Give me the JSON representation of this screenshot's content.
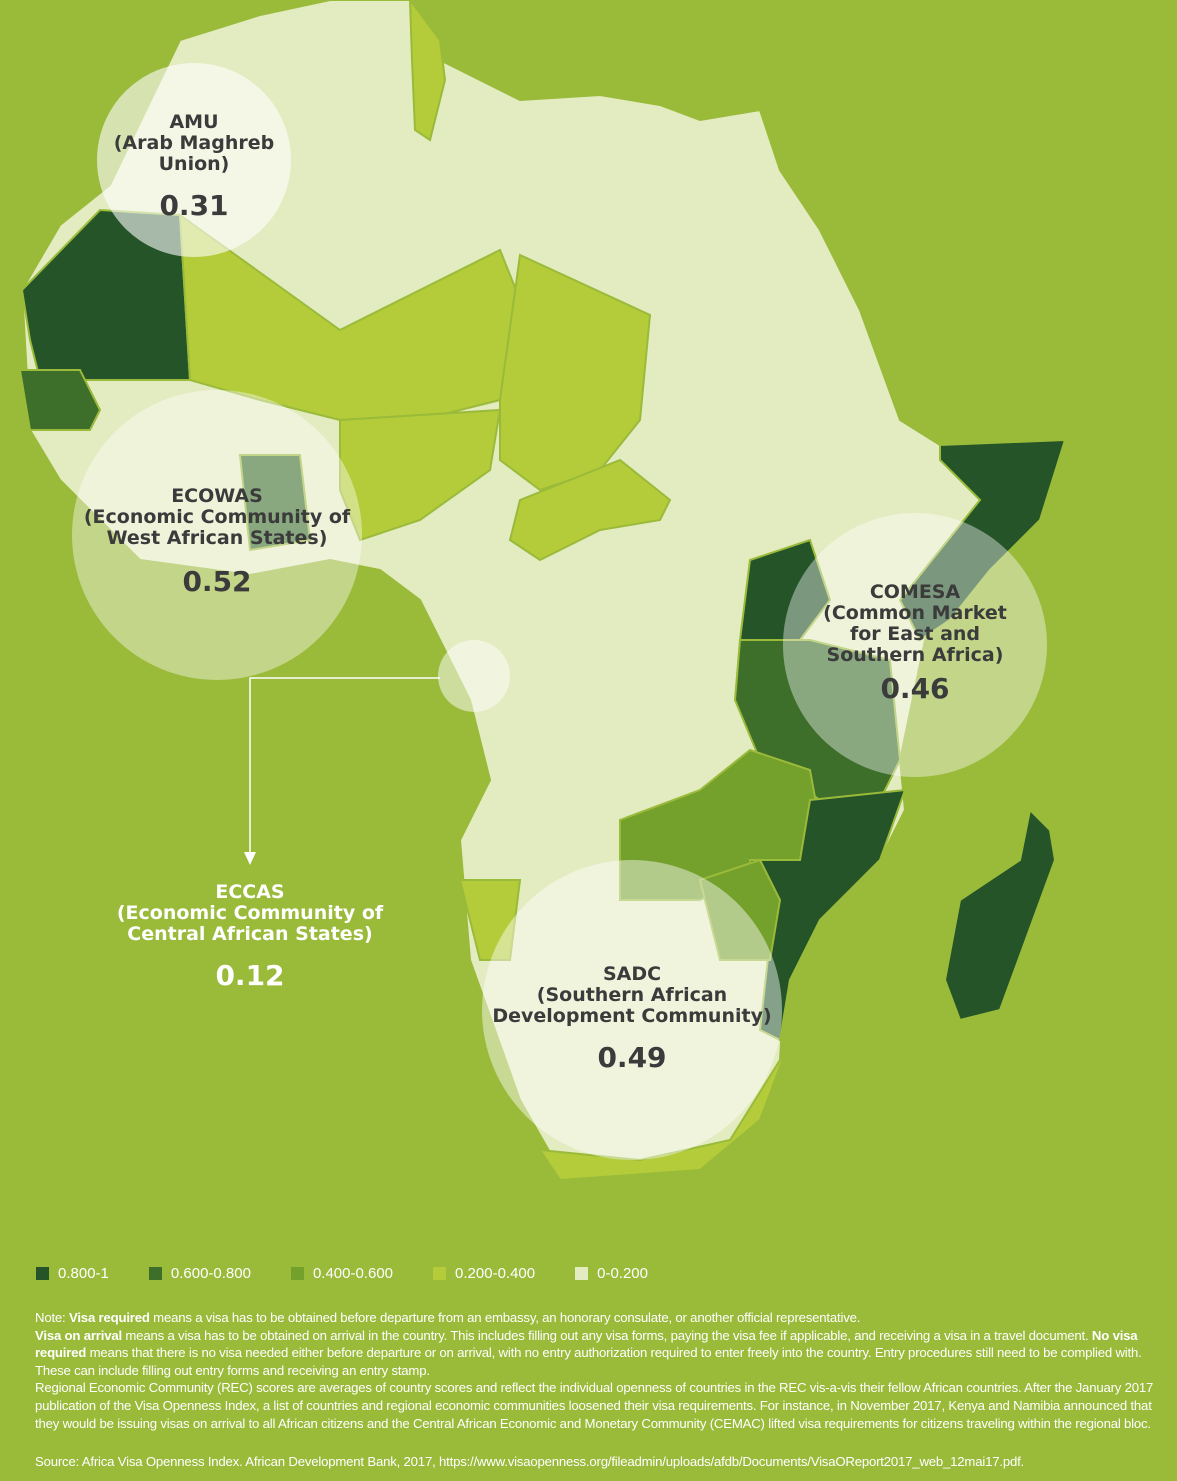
{
  "colors": {
    "background": "#9aba3a",
    "band_0_8_1": "#245428",
    "band_0_6_0_8": "#3d6e2a",
    "band_0_4_0_6": "#74a02c",
    "band_0_2_0_4": "#b5cc3a",
    "band_0_0_2": "#e3ebc1"
  },
  "regions": [
    {
      "name": "AMU",
      "full": "(Arab Maghreb",
      "full2": "Union)",
      "score": "0.31"
    },
    {
      "name": "ECOWAS",
      "full": "(Economic Community of",
      "full2": "West African States)",
      "score": "0.52"
    },
    {
      "name": "COMESA",
      "full": "(Common Market",
      "full2": "for East and",
      "full3": "Southern Africa)",
      "score": "0.46"
    },
    {
      "name": "ECCAS",
      "full": "(Economic Community of",
      "full2": "Central African States)",
      "score": "0.12"
    },
    {
      "name": "SADC",
      "full": "(Southern African",
      "full2": "Development Community)",
      "score": "0.49"
    }
  ],
  "legend": [
    {
      "label": "0.800-1",
      "color": "#245428"
    },
    {
      "label": "0.600-0.800",
      "color": "#3d6e2a"
    },
    {
      "label": "0.400-0.600",
      "color": "#74a02c"
    },
    {
      "label": "0.200-0.400",
      "color": "#b5cc3a"
    },
    {
      "label": "0-0.200",
      "color": "#e3ebc1"
    }
  ],
  "note": {
    "p1_prefix": "Note: ",
    "p1_bold": "Visa required",
    "p1_rest": " means a visa has to be obtained before departure from an embassy, an honorary consulate, or another official representative.",
    "p2_bold": "Visa on arrival",
    "p2_rest": " means a visa has to be obtained on arrival in the country. This includes filling out any visa forms, paying the visa fee if applicable, and receiving a visa in a travel document. ",
    "p3_bold": "No visa required",
    "p3_rest": " means that there is no visa needed either before departure or on arrival, with no entry authorization required to enter freely into the country. Entry procedures still need to be complied with. These can include filling out entry forms and receiving an entry stamp.",
    "p4": "Regional Economic Community (REC) scores are averages of country scores and reflect the individual openness of countries in the REC vis-a-vis their fellow African countries. After the January 2017 publication of the Visa Openness Index, a list of countries and regional economic communities loosened their visa requirements. For instance, in November 2017, Kenya and Namibia announced that they would be issuing visas on arrival to all African citizens and the Central African Economic and Monetary Community (CEMAC) lifted visa requirements for citizens traveling within the regional bloc.",
    "source": "Source: Africa Visa Openness Index. African Development Bank, 2017, https://www.visaopenness.org/fileadmin/uploads/afdb/Documents/VisaOReport2017_web_12mai17.pdf."
  }
}
